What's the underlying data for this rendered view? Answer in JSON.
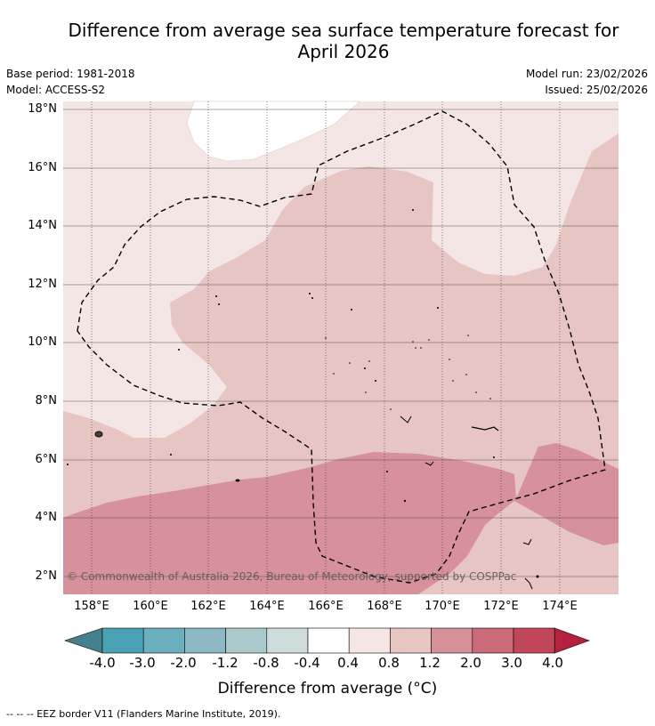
{
  "header": {
    "title_line1": "Difference from average sea surface temperature forecast for",
    "title_line2": "April 2026",
    "base_period": "Base period: 1981-2018",
    "model": "Model: ACCESS-S2",
    "model_run": "Model run: 23/02/2026",
    "issued": "Issued: 25/02/2026"
  },
  "map": {
    "lat_labels": [
      "18°N",
      "16°N",
      "14°N",
      "12°N",
      "10°N",
      "8°N",
      "6°N",
      "4°N",
      "2°N"
    ],
    "lon_labels": [
      "158°E",
      "160°E",
      "162°E",
      "164°E",
      "166°E",
      "168°E",
      "170°E",
      "172°E",
      "174°E"
    ],
    "copyright": "© Commonwealth of Australia 2026, Bureau of Meteorology, supported by COSPPac",
    "colors": {
      "band_0_4_0_8": "#f4e6e5",
      "band_0_8_1_2": "#e6c5c3",
      "band_1_2_2_0": "#d6919a",
      "land": "#000000",
      "eez_border": "#000000"
    }
  },
  "colorbar": {
    "title": "Difference from average (°C)",
    "tick_labels": [
      "-4.0",
      "-3.0",
      "-2.0",
      "-1.2",
      "-0.8",
      "-0.4",
      "0.4",
      "0.8",
      "1.2",
      "2.0",
      "3.0",
      "4.0"
    ],
    "colors": [
      "#46808d",
      "#4aa3b5",
      "#6cb0c0",
      "#8fb8c5",
      "#aac9cb",
      "#cfdcdc",
      "#ffffff",
      "#f4e6e5",
      "#e6c5c3",
      "#d6919a",
      "#cb6a78",
      "#c14758",
      "#b5223e"
    ]
  },
  "footnote": "--  --  -- EEZ border V11 (Flanders Marine Institute, 2019)."
}
